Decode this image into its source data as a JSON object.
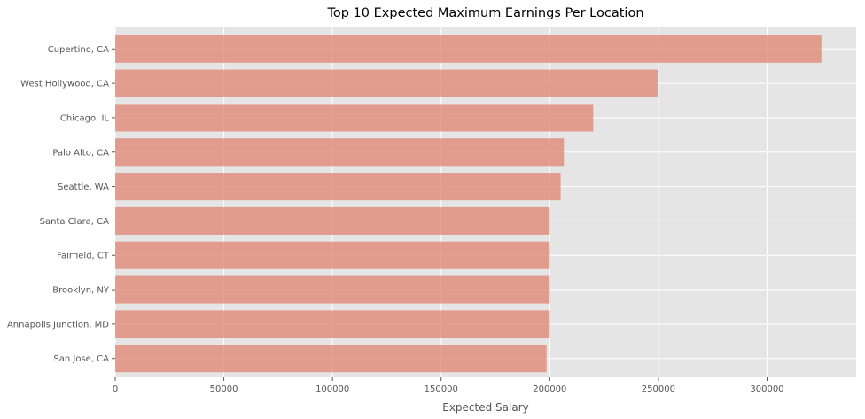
{
  "chart_data": {
    "type": "bar",
    "orientation": "horizontal",
    "title": "Top 10 Expected Maximum Earnings Per Location",
    "xlabel": "Expected Salary",
    "ylabel": "",
    "categories": [
      "Cupertino, CA",
      "West Hollywood, CA",
      "Chicago, IL",
      "Palo Alto, CA",
      "Seattle, WA",
      "Santa Clara, CA",
      "Fairfield, CT",
      "Brooklyn, NY",
      "Annapolis Junction, MD",
      "San Jose, CA"
    ],
    "values": [
      325000,
      250000,
      220000,
      206500,
      205000,
      200000,
      200000,
      200000,
      200000,
      198500
    ],
    "xlim": [
      0,
      341000
    ],
    "xticks": [
      0,
      50000,
      100000,
      150000,
      200000,
      250000,
      300000
    ],
    "xtick_labels": [
      "0",
      "50000",
      "100000",
      "150000",
      "200000",
      "250000",
      "300000"
    ],
    "grid": true,
    "colors": {
      "bar": "#e0836f",
      "bar_opacity": 0.75,
      "plot_background": "#e5e5e5",
      "grid": "#ffffff",
      "text": "#555555",
      "title": "#000000"
    }
  }
}
